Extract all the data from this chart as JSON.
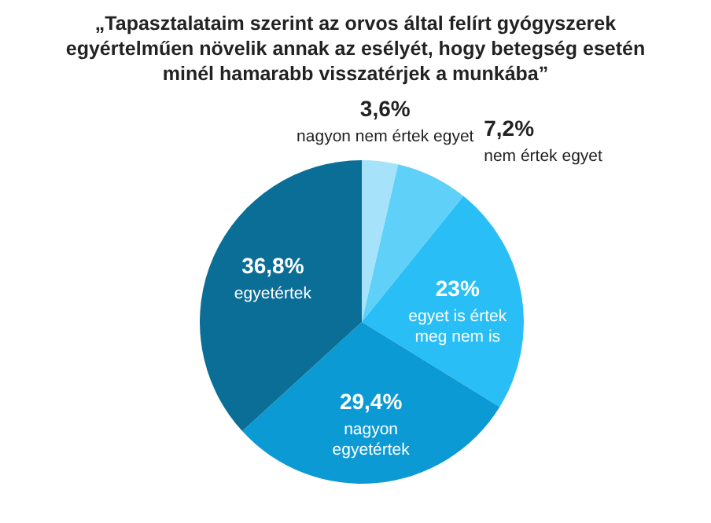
{
  "chart_data": {
    "type": "pie",
    "title": "„Tapasztalataim szerint az orvos által felírt gyógyszerek egyértelműen növelik annak az esélyét, hogy betegség esetén minél hamarabb visszatérjek a munkába”",
    "categories": [
      "nagyon nem értek egyet",
      "nem értek egyet",
      "egyet is értek meg nem is",
      "nagyon egyetértek",
      "egyetértek"
    ],
    "values": [
      3.6,
      7.2,
      23,
      29.4,
      36.8
    ],
    "value_labels": [
      "3,6%",
      "7,2%",
      "23%",
      "29,4%",
      "36,8%"
    ],
    "colors": [
      "#a6e3fa",
      "#5fd0f7",
      "#29bef5",
      "#0b9ad4",
      "#0a6e96"
    ]
  }
}
